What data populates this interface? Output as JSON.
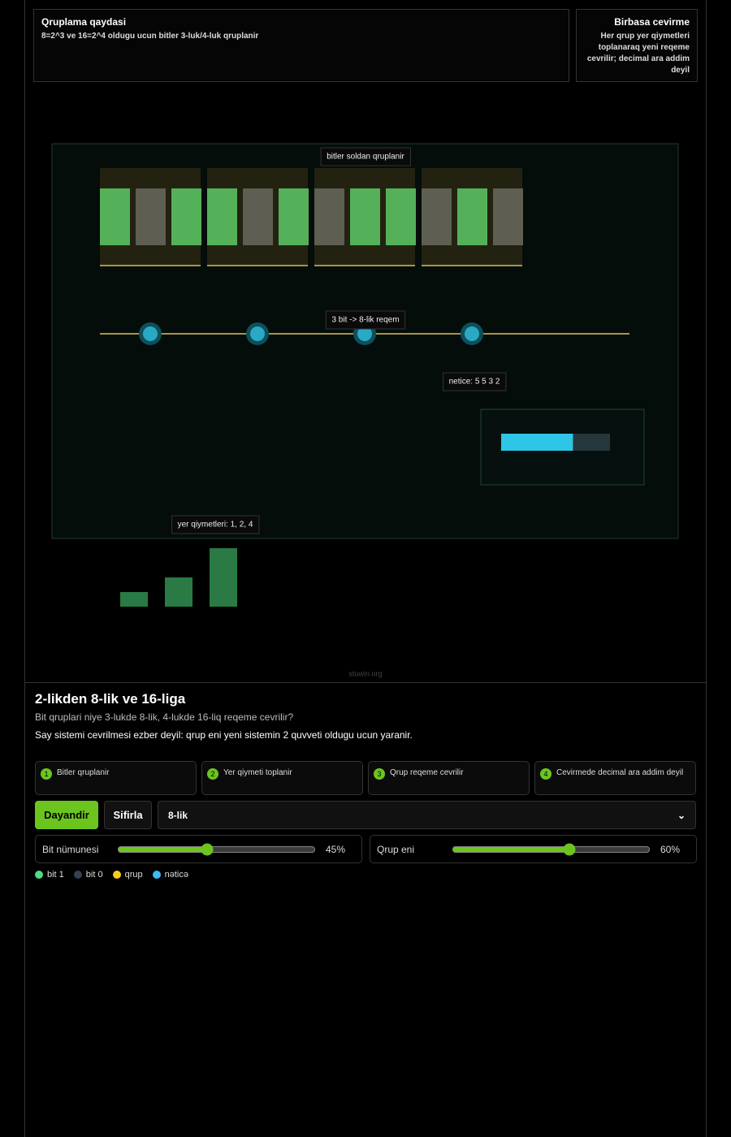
{
  "info_panels": [
    {
      "title": "Qruplama qaydasi",
      "text": "8=2^3 ve 16=2^4 oldugu ucun bitler 3-luk/4-luk qruplanir"
    },
    {
      "title": "Birbasa cevirme",
      "text": "Her qrup yer qiymetleri toplanaraq yeni reqeme cevrilir; decimal ara addim deyil"
    }
  ],
  "scene": {
    "group_label": "bitler soldan qruplanir",
    "bits": [
      1,
      0,
      1,
      1,
      0,
      1,
      0,
      1,
      1,
      0,
      1,
      0
    ],
    "group_size": 3,
    "digit_label": "3 bit -> 8-lik reqem",
    "result_label": "netice: 5 5 3 2",
    "progress": 66,
    "place_label": "yer qiymetleri: 1, 2, 4",
    "place_values": [
      1,
      2,
      4
    ]
  },
  "watermark": "stuwin.org",
  "header": {
    "title": "2-likden 8-lik ve 16-liga",
    "subtitle": "Bit qruplari niye 3-lukde 8-lik, 4-lukde 16-liq reqeme cevrilir?",
    "description": "Say sistemi cevrilmesi ezber deyil: qrup eni yeni sistemin 2 quvveti oldugu ucun yaranir."
  },
  "steps": [
    {
      "number": 1,
      "label": "Bitler qruplanir"
    },
    {
      "number": 2,
      "label": "Yer qiymeti toplanir"
    },
    {
      "number": 3,
      "label": "Qrup reqeme cevrilir"
    },
    {
      "number": 4,
      "label": "Cevirmede decimal ara addim deyil"
    }
  ],
  "buttons": [
    "Dayandir",
    "Sifirla"
  ],
  "select": {
    "value": "8-lik"
  },
  "sliders": [
    {
      "label": "Bit nümunesi",
      "value": 45,
      "value_label": "45%"
    },
    {
      "label": "Qrup eni",
      "value": 60,
      "value_label": "60%"
    }
  ],
  "legend": [
    {
      "label": "bit 1",
      "color": "#4ade80"
    },
    {
      "label": "bit 0",
      "color": "#334155"
    },
    {
      "label": "qrup",
      "color": "#facc15"
    },
    {
      "label": "nəticə",
      "color": "#38bdf8"
    }
  ]
}
